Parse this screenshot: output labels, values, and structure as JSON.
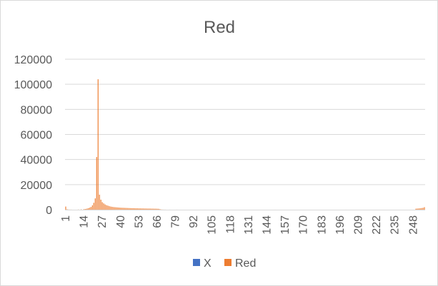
{
  "chart_data": {
    "type": "bar",
    "title": "Red",
    "xlabel": "",
    "ylabel": "",
    "ylim": [
      0,
      120000
    ],
    "y_ticks": [
      "0",
      "20000",
      "40000",
      "60000",
      "80000",
      "100000",
      "120000"
    ],
    "x_tick_labels": [
      "1",
      "14",
      "27",
      "40",
      "53",
      "66",
      "79",
      "92",
      "105",
      "118",
      "131",
      "144",
      "157",
      "170",
      "183",
      "196",
      "209",
      "222",
      "235",
      "248"
    ],
    "x_range": [
      1,
      256
    ],
    "grid": true,
    "legend_position": "bottom",
    "series": [
      {
        "name": "X",
        "color": "#4472c4",
        "values": []
      },
      {
        "name": "Red",
        "color": "#ed7d31",
        "points": [
          [
            1,
            2500
          ],
          [
            2,
            300
          ],
          [
            3,
            100
          ],
          [
            4,
            50
          ],
          [
            5,
            50
          ],
          [
            10,
            100
          ],
          [
            12,
            200
          ],
          [
            14,
            400
          ],
          [
            15,
            600
          ],
          [
            16,
            800
          ],
          [
            17,
            1200
          ],
          [
            18,
            1600
          ],
          [
            19,
            2200
          ],
          [
            20,
            3500
          ],
          [
            21,
            5500
          ],
          [
            22,
            9000
          ],
          [
            23,
            42000
          ],
          [
            24,
            104000
          ],
          [
            25,
            12000
          ],
          [
            26,
            8000
          ],
          [
            27,
            6000
          ],
          [
            28,
            5000
          ],
          [
            29,
            4200
          ],
          [
            30,
            3600
          ],
          [
            31,
            3200
          ],
          [
            32,
            2800
          ],
          [
            33,
            2500
          ],
          [
            34,
            2300
          ],
          [
            35,
            2100
          ],
          [
            36,
            2000
          ],
          [
            37,
            1900
          ],
          [
            38,
            1800
          ],
          [
            39,
            1700
          ],
          [
            40,
            1600
          ],
          [
            41,
            1550
          ],
          [
            42,
            1500
          ],
          [
            43,
            1450
          ],
          [
            44,
            1400
          ],
          [
            45,
            1350
          ],
          [
            46,
            1300
          ],
          [
            47,
            1250
          ],
          [
            48,
            1200
          ],
          [
            49,
            1200
          ],
          [
            50,
            1150
          ],
          [
            51,
            1100
          ],
          [
            52,
            1100
          ],
          [
            53,
            1050
          ],
          [
            54,
            1050
          ],
          [
            55,
            1000
          ],
          [
            56,
            1000
          ],
          [
            57,
            950
          ],
          [
            58,
            950
          ],
          [
            59,
            900
          ],
          [
            60,
            900
          ],
          [
            61,
            900
          ],
          [
            62,
            850
          ],
          [
            63,
            850
          ],
          [
            64,
            800
          ],
          [
            65,
            800
          ],
          [
            66,
            750
          ],
          [
            67,
            700
          ],
          [
            68,
            400
          ],
          [
            69,
            150
          ],
          [
            70,
            80
          ],
          [
            71,
            50
          ],
          [
            72,
            40
          ],
          [
            75,
            30
          ],
          [
            80,
            20
          ],
          [
            100,
            10
          ],
          [
            150,
            10
          ],
          [
            200,
            10
          ],
          [
            250,
            800
          ],
          [
            251,
            900
          ],
          [
            252,
            1000
          ],
          [
            253,
            1100
          ],
          [
            254,
            1300
          ],
          [
            255,
            1500
          ],
          [
            256,
            2000
          ]
        ]
      }
    ]
  }
}
